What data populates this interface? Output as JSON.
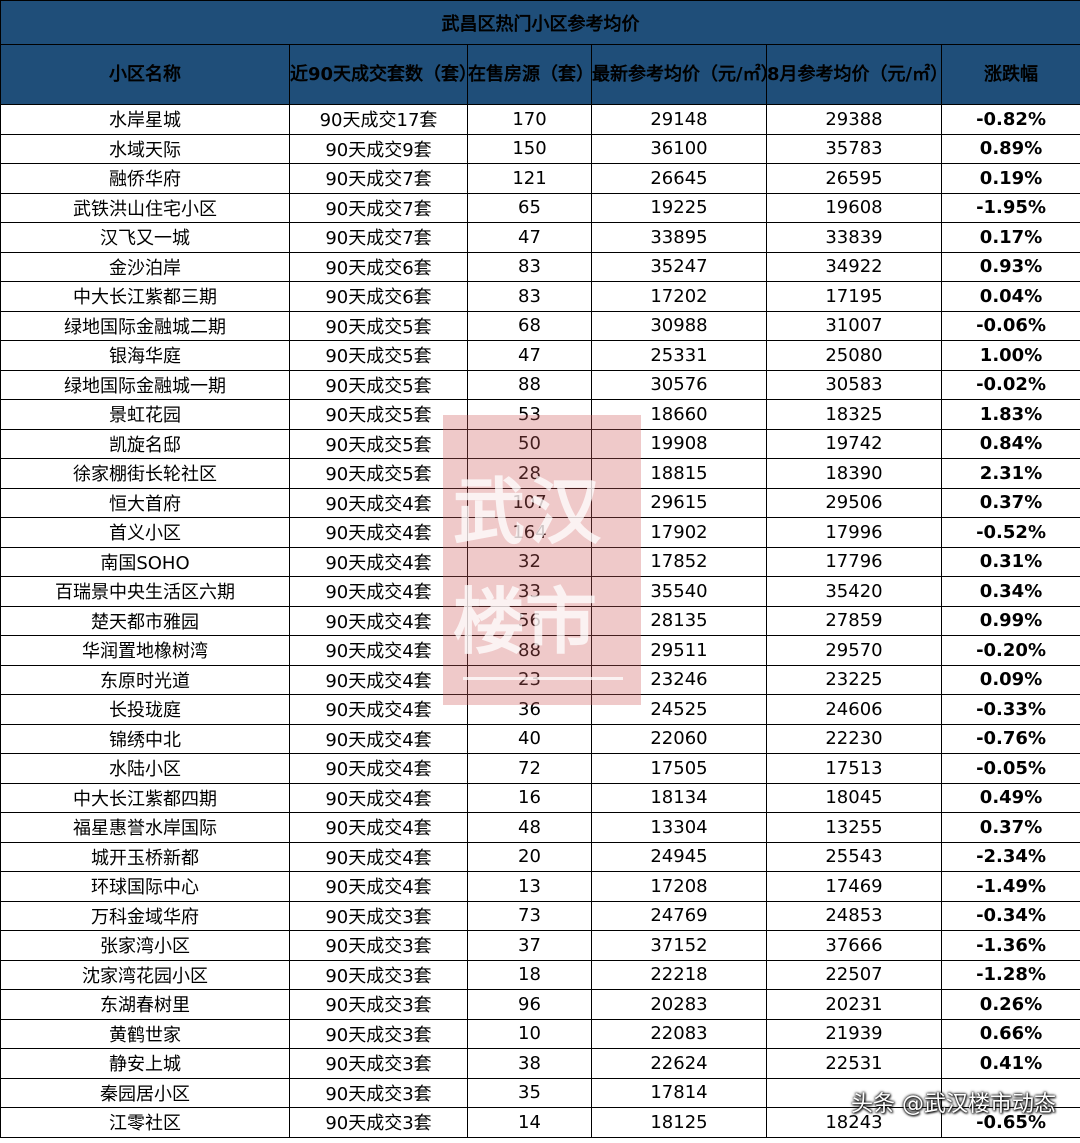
{
  "title": "武昌区热门小区参考均价",
  "headers": [
    "小区名称",
    "近90天成交套数（套）",
    "在售房源（套）",
    "最新参考均价（元/㎡）",
    "8月参考均价（元/㎡）",
    "涨跌幅"
  ],
  "rows": [
    {
      "name": "水岸星城",
      "deals": "90天成交17套",
      "listings": "170",
      "latest": "29148",
      "august": "29388",
      "change": "-0.82%",
      "dir": "down"
    },
    {
      "name": "水域天际",
      "deals": "90天成交9套",
      "listings": "150",
      "latest": "36100",
      "august": "35783",
      "change": "0.89%",
      "dir": "up"
    },
    {
      "name": "融侨华府",
      "deals": "90天成交7套",
      "listings": "121",
      "latest": "26645",
      "august": "26595",
      "change": "0.19%",
      "dir": "up"
    },
    {
      "name": "武铁洪山住宅小区",
      "deals": "90天成交7套",
      "listings": "65",
      "latest": "19225",
      "august": "19608",
      "change": "-1.95%",
      "dir": "down"
    },
    {
      "name": "汉飞又一城",
      "deals": "90天成交7套",
      "listings": "47",
      "latest": "33895",
      "august": "33839",
      "change": "0.17%",
      "dir": "up"
    },
    {
      "name": "金沙泊岸",
      "deals": "90天成交6套",
      "listings": "83",
      "latest": "35247",
      "august": "34922",
      "change": "0.93%",
      "dir": "up"
    },
    {
      "name": "中大长江紫都三期",
      "deals": "90天成交6套",
      "listings": "83",
      "latest": "17202",
      "august": "17195",
      "change": "0.04%",
      "dir": "up"
    },
    {
      "name": "绿地国际金融城二期",
      "deals": "90天成交5套",
      "listings": "68",
      "latest": "30988",
      "august": "31007",
      "change": "-0.06%",
      "dir": "down"
    },
    {
      "name": "银海华庭",
      "deals": "90天成交5套",
      "listings": "47",
      "latest": "25331",
      "august": "25080",
      "change": "1.00%",
      "dir": "up"
    },
    {
      "name": "绿地国际金融城一期",
      "deals": "90天成交5套",
      "listings": "88",
      "latest": "30576",
      "august": "30583",
      "change": "-0.02%",
      "dir": "down"
    },
    {
      "name": "景虹花园",
      "deals": "90天成交5套",
      "listings": "53",
      "latest": "18660",
      "august": "18325",
      "change": "1.83%",
      "dir": "up"
    },
    {
      "name": "凯旋名邸",
      "deals": "90天成交5套",
      "listings": "50",
      "latest": "19908",
      "august": "19742",
      "change": "0.84%",
      "dir": "up"
    },
    {
      "name": "徐家棚街长轮社区",
      "deals": "90天成交5套",
      "listings": "28",
      "latest": "18815",
      "august": "18390",
      "change": "2.31%",
      "dir": "up"
    },
    {
      "name": "恒大首府",
      "deals": "90天成交4套",
      "listings": "107",
      "latest": "29615",
      "august": "29506",
      "change": "0.37%",
      "dir": "up"
    },
    {
      "name": "首义小区",
      "deals": "90天成交4套",
      "listings": "164",
      "latest": "17902",
      "august": "17996",
      "change": "-0.52%",
      "dir": "down"
    },
    {
      "name": "南国SOHO",
      "deals": "90天成交4套",
      "listings": "32",
      "latest": "17852",
      "august": "17796",
      "change": "0.31%",
      "dir": "up"
    },
    {
      "name": "百瑞景中央生活区六期",
      "deals": "90天成交4套",
      "listings": "33",
      "latest": "35540",
      "august": "35420",
      "change": "0.34%",
      "dir": "up"
    },
    {
      "name": "楚天都市雅园",
      "deals": "90天成交4套",
      "listings": "56",
      "latest": "28135",
      "august": "27859",
      "change": "0.99%",
      "dir": "up"
    },
    {
      "name": "华润置地橡树湾",
      "deals": "90天成交4套",
      "listings": "88",
      "latest": "29511",
      "august": "29570",
      "change": "-0.20%",
      "dir": "down"
    },
    {
      "name": "东原时光道",
      "deals": "90天成交4套",
      "listings": "23",
      "latest": "23246",
      "august": "23225",
      "change": "0.09%",
      "dir": "up"
    },
    {
      "name": "长投珑庭",
      "deals": "90天成交4套",
      "listings": "36",
      "latest": "24525",
      "august": "24606",
      "change": "-0.33%",
      "dir": "down"
    },
    {
      "name": "锦绣中北",
      "deals": "90天成交4套",
      "listings": "40",
      "latest": "22060",
      "august": "22230",
      "change": "-0.76%",
      "dir": "down"
    },
    {
      "name": "水陆小区",
      "deals": "90天成交4套",
      "listings": "72",
      "latest": "17505",
      "august": "17513",
      "change": "-0.05%",
      "dir": "down"
    },
    {
      "name": "中大长江紫都四期",
      "deals": "90天成交4套",
      "listings": "16",
      "latest": "18134",
      "august": "18045",
      "change": "0.49%",
      "dir": "up"
    },
    {
      "name": "福星惠誉水岸国际",
      "deals": "90天成交4套",
      "listings": "48",
      "latest": "13304",
      "august": "13255",
      "change": "0.37%",
      "dir": "up"
    },
    {
      "name": "城开玉桥新都",
      "deals": "90天成交4套",
      "listings": "20",
      "latest": "24945",
      "august": "25543",
      "change": "-2.34%",
      "dir": "down"
    },
    {
      "name": "环球国际中心",
      "deals": "90天成交4套",
      "listings": "13",
      "latest": "17208",
      "august": "17469",
      "change": "-1.49%",
      "dir": "down"
    },
    {
      "name": "万科金域华府",
      "deals": "90天成交3套",
      "listings": "73",
      "latest": "24769",
      "august": "24853",
      "change": "-0.34%",
      "dir": "down"
    },
    {
      "name": "张家湾小区",
      "deals": "90天成交3套",
      "listings": "37",
      "latest": "37152",
      "august": "37666",
      "change": "-1.36%",
      "dir": "down"
    },
    {
      "name": "沈家湾花园小区",
      "deals": "90天成交3套",
      "listings": "18",
      "latest": "22218",
      "august": "22507",
      "change": "-1.28%",
      "dir": "down"
    },
    {
      "name": "东湖春树里",
      "deals": "90天成交3套",
      "listings": "96",
      "latest": "20283",
      "august": "20231",
      "change": "0.26%",
      "dir": "up"
    },
    {
      "name": "黄鹤世家",
      "deals": "90天成交3套",
      "listings": "10",
      "latest": "22083",
      "august": "21939",
      "change": "0.66%",
      "dir": "up"
    },
    {
      "name": "静安上城",
      "deals": "90天成交3套",
      "listings": "38",
      "latest": "22624",
      "august": "22531",
      "change": "0.41%",
      "dir": "up"
    },
    {
      "name": "秦园居小区",
      "deals": "90天成交3套",
      "listings": "35",
      "latest": "17814",
      "august": "",
      "change": "",
      "dir": "down"
    },
    {
      "name": "江零社区",
      "deals": "90天成交3套",
      "listings": "14",
      "latest": "18125",
      "august": "18243",
      "change": "-0.65%",
      "dir": "down"
    }
  ],
  "watermark": {
    "line1": "武汉",
    "line2": "楼市",
    "tag": "动态"
  },
  "credit": "头条 @武汉楼市动态",
  "colors": {
    "header_bg": "#1f4e79",
    "up": "#e60012",
    "down": "#00a651"
  }
}
